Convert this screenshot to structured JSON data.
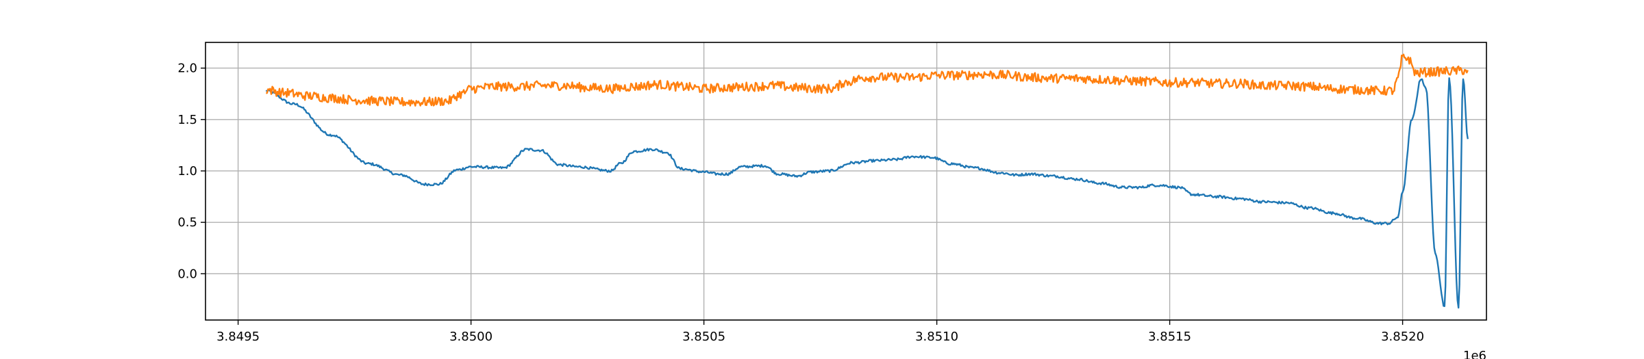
{
  "chart_data": {
    "type": "line",
    "title": "",
    "xlabel": "",
    "ylabel": "",
    "x_offset_label": "1e6",
    "xlim": [
      3.84943,
      3.85218
    ],
    "ylim": [
      -0.45,
      2.25
    ],
    "grid": true,
    "legend": "none",
    "x_ticks": [
      {
        "value": 3.8495,
        "label": "3.8495"
      },
      {
        "value": 3.85,
        "label": "3.8500"
      },
      {
        "value": 3.8505,
        "label": "3.8505"
      },
      {
        "value": 3.851,
        "label": "3.8510"
      },
      {
        "value": 3.8515,
        "label": "3.8515"
      },
      {
        "value": 3.852,
        "label": "3.8520"
      }
    ],
    "y_ticks": [
      {
        "value": 0.0,
        "label": "0.0"
      },
      {
        "value": 0.5,
        "label": "0.5"
      },
      {
        "value": 1.0,
        "label": "1.0"
      },
      {
        "value": 1.5,
        "label": "1.5"
      },
      {
        "value": 2.0,
        "label": "2.0"
      }
    ],
    "series": [
      {
        "color": "#1f77b4",
        "noise": 0.012,
        "x": [
          3.84956,
          3.84962,
          3.8497,
          3.84978,
          3.84985,
          3.8499,
          3.84993,
          3.84997,
          3.85,
          3.85007,
          3.85012,
          3.85015,
          3.85019,
          3.85023,
          3.8503,
          3.85032,
          3.85035,
          3.85039,
          3.85042,
          3.85045,
          3.8505,
          3.85053,
          3.85055,
          3.85058,
          3.85063,
          3.85066,
          3.8507,
          3.85073,
          3.85077,
          3.85082,
          3.85087,
          3.85091,
          3.85095,
          3.85099,
          3.85103,
          3.85108,
          3.85114,
          3.85117,
          3.8512,
          3.85125,
          3.8513,
          3.85135,
          3.8514,
          3.85144,
          3.85146,
          3.85148,
          3.85152,
          3.85155,
          3.8516,
          3.85165,
          3.8517,
          3.85175,
          3.8518,
          3.85185,
          3.8519,
          3.85195,
          3.85197,
          3.85199,
          3.852,
          3.85202,
          3.85204,
          3.85205,
          3.85207,
          3.85209,
          3.8521,
          3.85212,
          3.85213,
          3.85214
        ],
        "y": [
          1.78,
          1.65,
          1.35,
          1.07,
          0.96,
          0.87,
          0.87,
          1.01,
          1.04,
          1.03,
          1.21,
          1.2,
          1.06,
          1.04,
          1.0,
          1.07,
          1.19,
          1.21,
          1.18,
          1.02,
          0.99,
          0.97,
          0.97,
          1.04,
          1.05,
          0.97,
          0.95,
          0.99,
          1.0,
          1.08,
          1.1,
          1.11,
          1.14,
          1.13,
          1.07,
          1.03,
          0.98,
          0.96,
          0.97,
          0.95,
          0.92,
          0.88,
          0.84,
          0.84,
          0.86,
          0.86,
          0.84,
          0.77,
          0.75,
          0.73,
          0.7,
          0.69,
          0.64,
          0.59,
          0.54,
          0.49,
          0.49,
          0.55,
          0.8,
          1.5,
          1.9,
          1.8,
          0.2,
          -0.32,
          1.9,
          -0.32,
          1.9,
          1.31
        ]
      },
      {
        "color": "#ff7f0e",
        "noise": 0.045,
        "x": [
          3.84956,
          3.8496,
          3.84965,
          3.8497,
          3.84975,
          3.8498,
          3.84985,
          3.8499,
          3.84995,
          3.84998,
          3.85,
          3.85005,
          3.8501,
          3.85015,
          3.8502,
          3.85025,
          3.8503,
          3.85035,
          3.8504,
          3.85045,
          3.8505,
          3.85055,
          3.8506,
          3.85065,
          3.8507,
          3.85075,
          3.85078,
          3.8508,
          3.85085,
          3.8509,
          3.85095,
          3.851,
          3.85105,
          3.8511,
          3.85115,
          3.8512,
          3.85125,
          3.8513,
          3.85135,
          3.8514,
          3.85145,
          3.8515,
          3.85155,
          3.8516,
          3.85165,
          3.8517,
          3.85175,
          3.8518,
          3.85185,
          3.8519,
          3.85195,
          3.85198,
          3.85199,
          3.852,
          3.85201,
          3.85203,
          3.85205,
          3.8521,
          3.85214
        ],
        "y": [
          1.79,
          1.76,
          1.73,
          1.71,
          1.69,
          1.68,
          1.67,
          1.67,
          1.68,
          1.75,
          1.8,
          1.82,
          1.82,
          1.83,
          1.83,
          1.81,
          1.8,
          1.82,
          1.84,
          1.82,
          1.8,
          1.81,
          1.82,
          1.83,
          1.81,
          1.8,
          1.8,
          1.86,
          1.91,
          1.91,
          1.91,
          1.93,
          1.93,
          1.94,
          1.93,
          1.91,
          1.9,
          1.9,
          1.89,
          1.88,
          1.87,
          1.86,
          1.86,
          1.85,
          1.85,
          1.83,
          1.83,
          1.82,
          1.8,
          1.79,
          1.78,
          1.78,
          1.9,
          2.1,
          2.1,
          1.95,
          1.96,
          1.97,
          1.98
        ]
      }
    ]
  }
}
